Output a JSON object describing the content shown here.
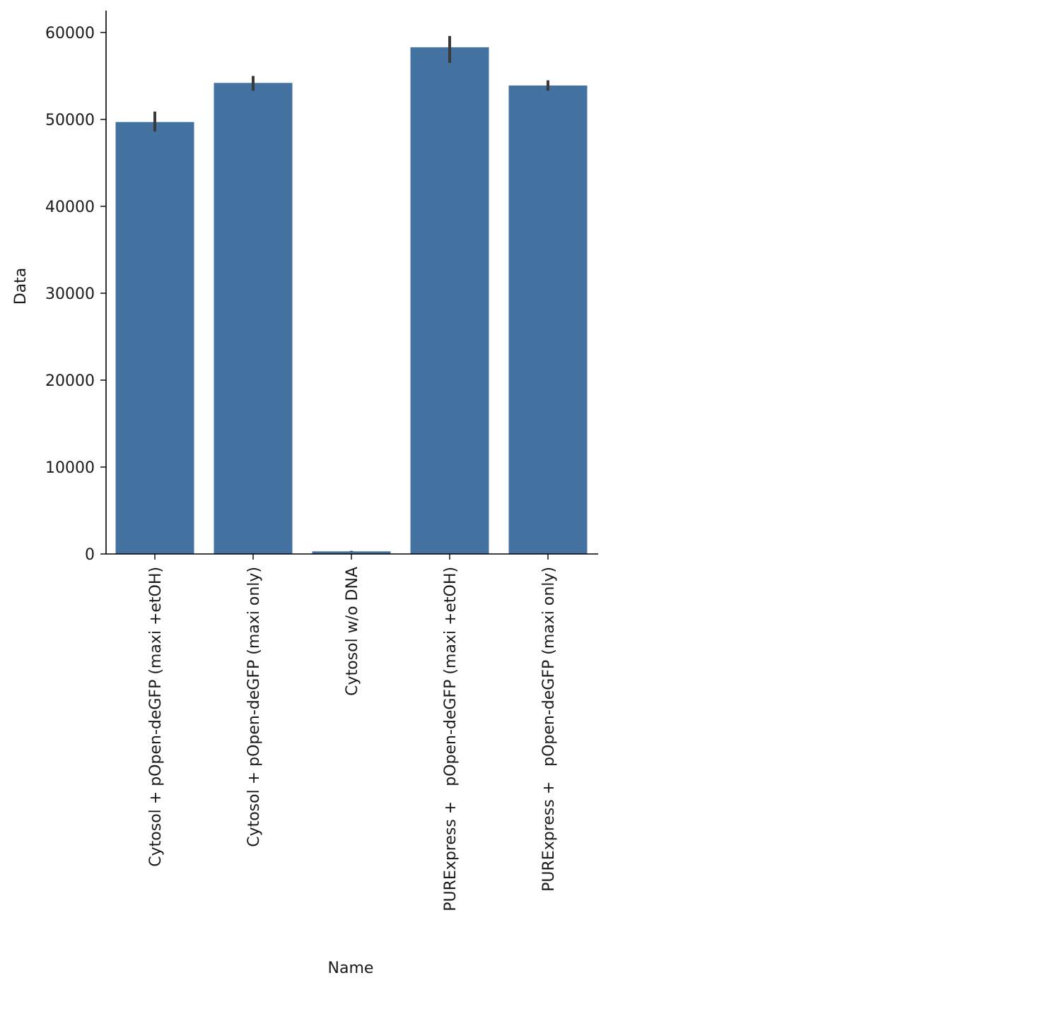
{
  "chart_data": {
    "type": "bar",
    "title": "",
    "xlabel": "Name",
    "ylabel": "Data",
    "ylim": [
      0,
      62500
    ],
    "yticks": [
      0,
      10000,
      20000,
      30000,
      40000,
      50000,
      60000
    ],
    "ytick_labels": [
      "0",
      "10000",
      "20000",
      "30000",
      "40000",
      "50000",
      "60000"
    ],
    "grid": false,
    "legend": "none",
    "bar_color": "#4472a0",
    "errorbar_color": "#3a3a3a",
    "categories": [
      "Cytosol + pOpen-deGFP (maxi +etOH)",
      "Cytosol + pOpen-deGFP (maxi only)",
      "Cytosol w/o DNA",
      "PURExpress +   pOpen-deGFP (maxi +etOH)",
      "PURExpress +   pOpen-deGFP (maxi only)"
    ],
    "values": [
      49700,
      54200,
      300,
      58300,
      53900
    ],
    "error_low": [
      48600,
      53300,
      250,
      56500,
      53300
    ],
    "error_high": [
      50900,
      55000,
      350,
      59600,
      54500
    ]
  }
}
